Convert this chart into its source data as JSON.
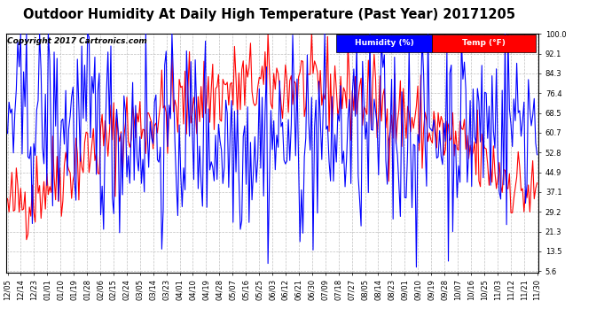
{
  "title": "Outdoor Humidity At Daily High Temperature (Past Year) 20171205",
  "copyright": "Copyright 2017 Cartronics.com",
  "legend_humidity": "Humidity (%)",
  "legend_temp": "Temp (°F)",
  "humidity_color": "#0000ff",
  "temp_color": "#ff0000",
  "bg_color": "#ffffff",
  "plot_bg_color": "#ffffff",
  "grid_color": "#b0b0b0",
  "ylim_min": 5.6,
  "ylim_max": 100.0,
  "yticks": [
    5.6,
    13.5,
    21.3,
    29.2,
    37.1,
    44.9,
    52.8,
    60.7,
    68.5,
    76.4,
    84.3,
    92.1,
    100.0
  ],
  "xtick_labels": [
    "12/05",
    "12/14",
    "12/23",
    "01/01",
    "01/10",
    "01/19",
    "01/28",
    "02/06",
    "02/15",
    "02/24",
    "03/05",
    "03/14",
    "03/23",
    "04/01",
    "04/10",
    "04/19",
    "04/28",
    "05/07",
    "05/16",
    "05/25",
    "06/03",
    "06/12",
    "06/21",
    "06/30",
    "07/09",
    "07/18",
    "07/27",
    "08/05",
    "08/14",
    "08/23",
    "09/01",
    "09/10",
    "09/19",
    "09/28",
    "10/07",
    "10/16",
    "10/25",
    "11/03",
    "11/12",
    "11/21",
    "11/30"
  ],
  "n_points": 365,
  "title_fontsize": 10.5,
  "copyright_fontsize": 6.5,
  "tick_fontsize": 6,
  "legend_fontsize": 6.5,
  "linewidth": 0.8
}
